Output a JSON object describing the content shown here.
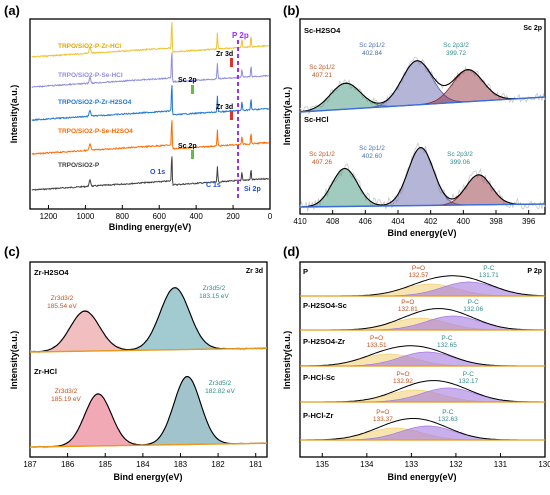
{
  "chart_data": [
    {
      "panel": "(a)",
      "type": "line",
      "xlabel": "Binding energy(eV)",
      "ylabel": "Intensity(a.u.)",
      "xlim": [
        1300,
        0
      ],
      "xticks": [
        "1200",
        "1000",
        "800",
        "600",
        "400",
        "200",
        "0"
      ],
      "series": [
        {
          "name": "TRPO/SiO2-P",
          "color": "#404040"
        },
        {
          "name": "TRPO/SiO2-P-Se-H2SO4",
          "color": "#ff6a00"
        },
        {
          "name": "TRPO/SiO2-P-Zr-H2SO4",
          "color": "#1f77d4"
        },
        {
          "name": "TRPO/SiO2-P-Se-HCl",
          "color": "#8f8fe0"
        },
        {
          "name": "TRPO/SiO2-P-Zr-HCl",
          "color": "#f2c12e"
        }
      ],
      "annotations": [
        "O 1s",
        "C 1s",
        "Si 2p",
        "P 2p",
        "Zr 3d",
        "Sc 2p",
        "Sc 2p",
        "Zr 3d"
      ]
    },
    {
      "panel": "(b)",
      "type": "line",
      "title": "Sc 2p",
      "xlabel": "Bind energy(eV)",
      "ylabel": "Intensity(a.u.)",
      "xlim": [
        410,
        395
      ],
      "xticks": [
        "410",
        "408",
        "406",
        "404",
        "402",
        "400",
        "398",
        "396"
      ],
      "subplots": [
        {
          "label": "Sc-H2SO4",
          "peaks": [
            {
              "name": "Sc 2p1/2",
              "position_ev": 407.21,
              "color": "#2e8b6e"
            },
            {
              "name": "Sc 2p1/2",
              "position_ev": 402.84,
              "color": "#5a5aa8"
            },
            {
              "name": "Sc 2p3/2",
              "position_ev": 399.72,
              "color": "#8b2230"
            }
          ]
        },
        {
          "label": "Sc-HCl",
          "peaks": [
            {
              "name": "Sc 2p1/2",
              "position_ev": 407.26,
              "color": "#2e8b6e"
            },
            {
              "name": "Sc 2p1/2",
              "position_ev": 402.6,
              "color": "#5a5aa8"
            },
            {
              "name": "Sc 2p3/2",
              "position_ev": 399.06,
              "color": "#8b2230"
            }
          ]
        }
      ]
    },
    {
      "panel": "(c)",
      "type": "line",
      "title": "Zr 3d",
      "xlabel": "Bind energy(eV)",
      "ylabel": "Intensity(a.u.)",
      "xlim": [
        187,
        180.7
      ],
      "xticks": [
        "187",
        "186",
        "185",
        "184",
        "183",
        "182",
        "181"
      ],
      "subplots": [
        {
          "label": "Zr-H2SO4",
          "peaks": [
            {
              "name": "Zr3d3/2",
              "position_ev": 185.54,
              "color": "#e07070"
            },
            {
              "name": "Zr3d5/2",
              "position_ev": 183.15,
              "color": "#2e8b9a"
            }
          ]
        },
        {
          "label": "Zr-HCl",
          "peaks": [
            {
              "name": "Zr3d3/2",
              "position_ev": 185.19,
              "color": "#e0405a"
            },
            {
              "name": "Zr3d5/2",
              "position_ev": 182.82,
              "color": "#2e7b8b"
            }
          ]
        }
      ]
    },
    {
      "panel": "(d)",
      "type": "line",
      "title": "P 2p",
      "xlabel": "Bind energy(eV)",
      "ylabel": "Intensity(a.u.)",
      "xlim": [
        135.5,
        130
      ],
      "xticks": [
        "135",
        "134",
        "133",
        "132",
        "131",
        "130"
      ],
      "subplots": [
        {
          "label": "P",
          "peaks": [
            {
              "name": "P=O",
              "position_ev": 132.57
            },
            {
              "name": "P-C",
              "position_ev": 131.71
            }
          ]
        },
        {
          "label": "P-H2SO4-Sc",
          "peaks": [
            {
              "name": "P=O",
              "position_ev": 132.81
            },
            {
              "name": "P-C",
              "position_ev": 132.06
            }
          ]
        },
        {
          "label": "P-H2SO4-Zr",
          "peaks": [
            {
              "name": "P=O",
              "position_ev": 133.51
            },
            {
              "name": "P-C",
              "position_ev": 132.65
            }
          ]
        },
        {
          "label": "P-HCl-Sc",
          "peaks": [
            {
              "name": "P=O",
              "position_ev": 132.92
            },
            {
              "name": "P-C",
              "position_ev": 132.17
            }
          ]
        },
        {
          "label": "P-HCl-Zr",
          "peaks": [
            {
              "name": "P=O",
              "position_ev": 133.37
            },
            {
              "name": "P-C",
              "position_ev": 132.63
            }
          ]
        }
      ]
    }
  ]
}
